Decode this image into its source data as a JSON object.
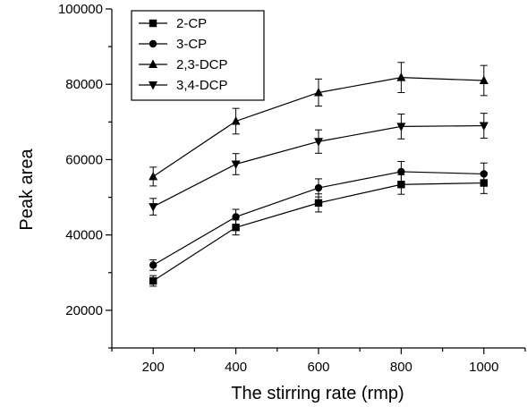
{
  "chart_data": {
    "type": "line",
    "title": "",
    "xlabel": "The stirring rate (rmp)",
    "ylabel": "Peak area",
    "x": [
      200,
      400,
      600,
      800,
      1000
    ],
    "xlim": [
      100,
      1100
    ],
    "ylim": [
      10000,
      100000
    ],
    "x_ticks": [
      "200",
      "400",
      "600",
      "800",
      "1000"
    ],
    "y_ticks": [
      "20000",
      "40000",
      "60000",
      "80000",
      "100000"
    ],
    "grid": false,
    "legend_position": "top-left",
    "error_bars": true,
    "series": [
      {
        "name": "2-CP",
        "marker": "square",
        "values": [
          27800,
          42000,
          48500,
          53400,
          53800
        ],
        "errors": [
          1400,
          2000,
          2400,
          2600,
          2800
        ]
      },
      {
        "name": "3-CP",
        "marker": "circle",
        "values": [
          32000,
          44800,
          52500,
          56800,
          56200
        ],
        "errors": [
          1400,
          2000,
          2400,
          2700,
          2900
        ]
      },
      {
        "name": "2,3-DCP",
        "marker": "triangle-up",
        "values": [
          55500,
          70200,
          77800,
          81800,
          81000
        ],
        "errors": [
          2500,
          3400,
          3600,
          4000,
          4000
        ]
      },
      {
        "name": "3,4-DCP",
        "marker": "triangle-down",
        "values": [
          47500,
          58800,
          64800,
          68800,
          69000
        ],
        "errors": [
          2200,
          2800,
          3100,
          3300,
          3300
        ]
      }
    ]
  }
}
